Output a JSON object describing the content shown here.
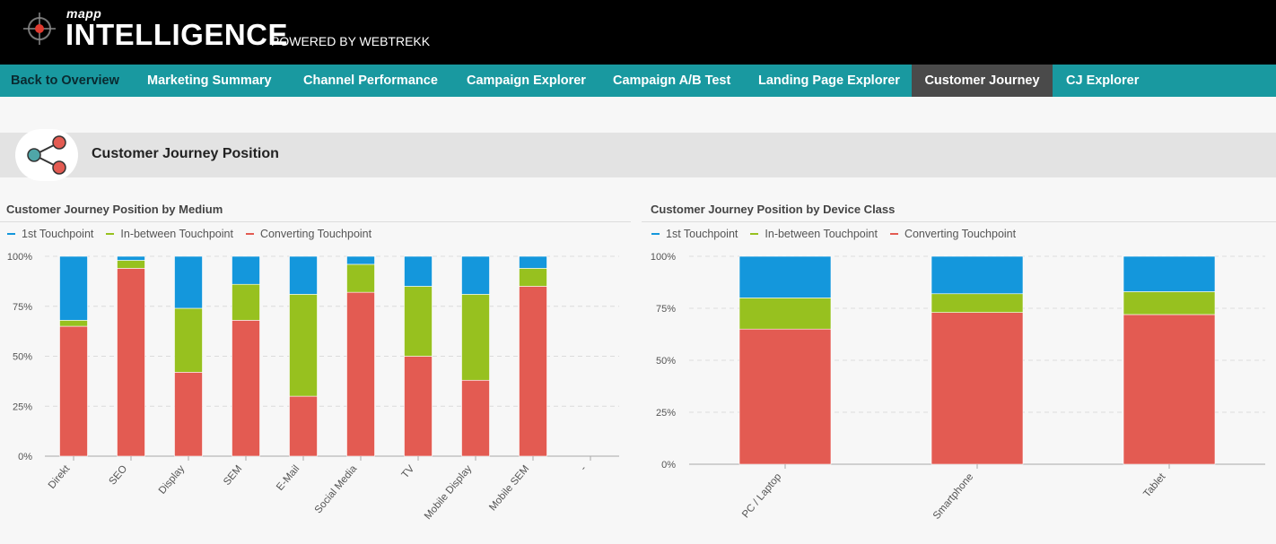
{
  "header": {
    "brand_small": "mapp",
    "brand_big": "INTELLIGENCE",
    "powered_by": "POWERED BY WEBTREKK"
  },
  "nav": {
    "items": [
      {
        "label": "Back to Overview"
      },
      {
        "label": "Marketing Summary"
      },
      {
        "label": "Channel Performance"
      },
      {
        "label": "Campaign Explorer"
      },
      {
        "label": "Campaign A/B Test"
      },
      {
        "label": "Landing Page Explorer"
      },
      {
        "label": "Customer Journey",
        "active": true
      },
      {
        "label": "CJ Explorer"
      }
    ]
  },
  "section": {
    "title": "Customer Journey Position",
    "icon": "share-icon"
  },
  "colors": {
    "first": "#1497dc",
    "between": "#97c11f",
    "converting": "#e35b52",
    "nav_bg": "#1999a0",
    "nav_active": "#4a4a4a"
  },
  "chart_data": [
    {
      "type": "bar",
      "stacked": true,
      "title": "Customer Journey Position by Medium",
      "categories": [
        "Direkt",
        "SEO",
        "Display",
        "SEM",
        "E-Mail",
        "Social Media",
        "TV",
        "Mobile Display",
        "Mobile SEM",
        "-"
      ],
      "series": [
        {
          "name": "Converting Touchpoint",
          "values": [
            65,
            94,
            42,
            68,
            30,
            82,
            50,
            38,
            85,
            0
          ]
        },
        {
          "name": "In-between Touchpoint",
          "values": [
            3,
            4,
            32,
            18,
            51,
            14,
            35,
            43,
            9,
            0
          ]
        },
        {
          "name": "1st Touchpoint",
          "values": [
            32,
            2,
            26,
            14,
            19,
            4,
            15,
            19,
            6,
            0
          ]
        }
      ],
      "legend": [
        "1st Touchpoint",
        "In-between Touchpoint",
        "Converting Touchpoint"
      ],
      "y_ticks": [
        "0%",
        "25%",
        "50%",
        "75%",
        "100%"
      ],
      "ylim": [
        0,
        100
      ]
    },
    {
      "type": "bar",
      "stacked": true,
      "title": "Customer Journey Position by Device Class",
      "categories": [
        "PC / Laptop",
        "Smartphone",
        "Tablet"
      ],
      "series": [
        {
          "name": "Converting Touchpoint",
          "values": [
            65,
            73,
            72
          ]
        },
        {
          "name": "In-between Touchpoint",
          "values": [
            15,
            9,
            11
          ]
        },
        {
          "name": "1st Touchpoint",
          "values": [
            20,
            18,
            17
          ]
        }
      ],
      "legend": [
        "1st Touchpoint",
        "In-between Touchpoint",
        "Converting Touchpoint"
      ],
      "y_ticks": [
        "0%",
        "25%",
        "50%",
        "75%",
        "100%"
      ],
      "ylim": [
        0,
        100
      ]
    }
  ]
}
